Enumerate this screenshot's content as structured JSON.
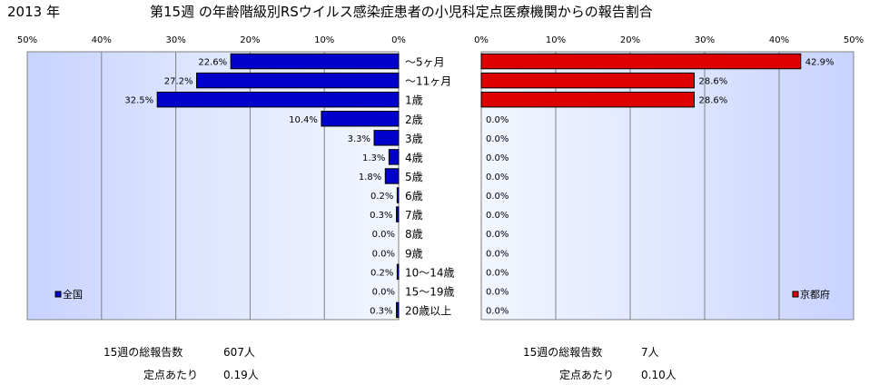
{
  "header": {
    "year": "2013 年",
    "title": "第15週 の年齢階級別RSウイルス感染症患者の小児科定点医療機関からの報告割合"
  },
  "chart_data": [
    {
      "type": "bar",
      "orientation": "horizontal",
      "direction": "right-to-left",
      "legend": "全国",
      "legend_position": "bottom-left",
      "color": "#0000CC",
      "xlim": [
        0,
        50
      ],
      "ticks": [
        "50%",
        "40%",
        "30%",
        "20%",
        "10%",
        "0%"
      ],
      "categories": [
        "～5ヶ月",
        "～11ヶ月",
        "1歳",
        "2歳",
        "3歳",
        "4歳",
        "5歳",
        "6歳",
        "7歳",
        "8歳",
        "9歳",
        "10～14歳",
        "15～19歳",
        "20歳以上"
      ],
      "values": [
        22.6,
        27.2,
        32.5,
        10.4,
        3.3,
        1.3,
        1.8,
        0.2,
        0.3,
        0.0,
        0.0,
        0.2,
        0.0,
        0.3
      ],
      "labels": [
        "22.6%",
        "27.2%",
        "32.5%",
        "10.4%",
        "3.3%",
        "1.3%",
        "1.8%",
        "0.2%",
        "0.3%",
        "0.0%",
        "0.0%",
        "0.2%",
        "0.0%",
        "0.3%"
      ]
    },
    {
      "type": "bar",
      "orientation": "horizontal",
      "direction": "left-to-right",
      "legend": "京都府",
      "legend_position": "bottom-right",
      "color": "#DD0000",
      "xlim": [
        0,
        50
      ],
      "ticks": [
        "0%",
        "10%",
        "20%",
        "30%",
        "40%",
        "50%"
      ],
      "categories": [
        "～5ヶ月",
        "～11ヶ月",
        "1歳",
        "2歳",
        "3歳",
        "4歳",
        "5歳",
        "6歳",
        "7歳",
        "8歳",
        "9歳",
        "10～14歳",
        "15～19歳",
        "20歳以上"
      ],
      "values": [
        42.9,
        28.6,
        28.6,
        0,
        0,
        0,
        0,
        0,
        0,
        0,
        0,
        0,
        0,
        0
      ],
      "labels": [
        "42.9%",
        "28.6%",
        "28.6%",
        "0.0%",
        "0.0%",
        "0.0%",
        "0.0%",
        "0.0%",
        "0.0%",
        "0.0%",
        "0.0%",
        "0.0%",
        "0.0%",
        "0.0%"
      ]
    }
  ],
  "footer": {
    "national": {
      "reports_label": "15週の総報告数",
      "reports_value": "607人",
      "per_site_label": "定点あたり",
      "per_site_value": "0.19人"
    },
    "kyoto": {
      "reports_label": "15週の総報告数",
      "reports_value": "7人",
      "per_site_label": "定点あたり",
      "per_site_value": "0.10人"
    }
  }
}
